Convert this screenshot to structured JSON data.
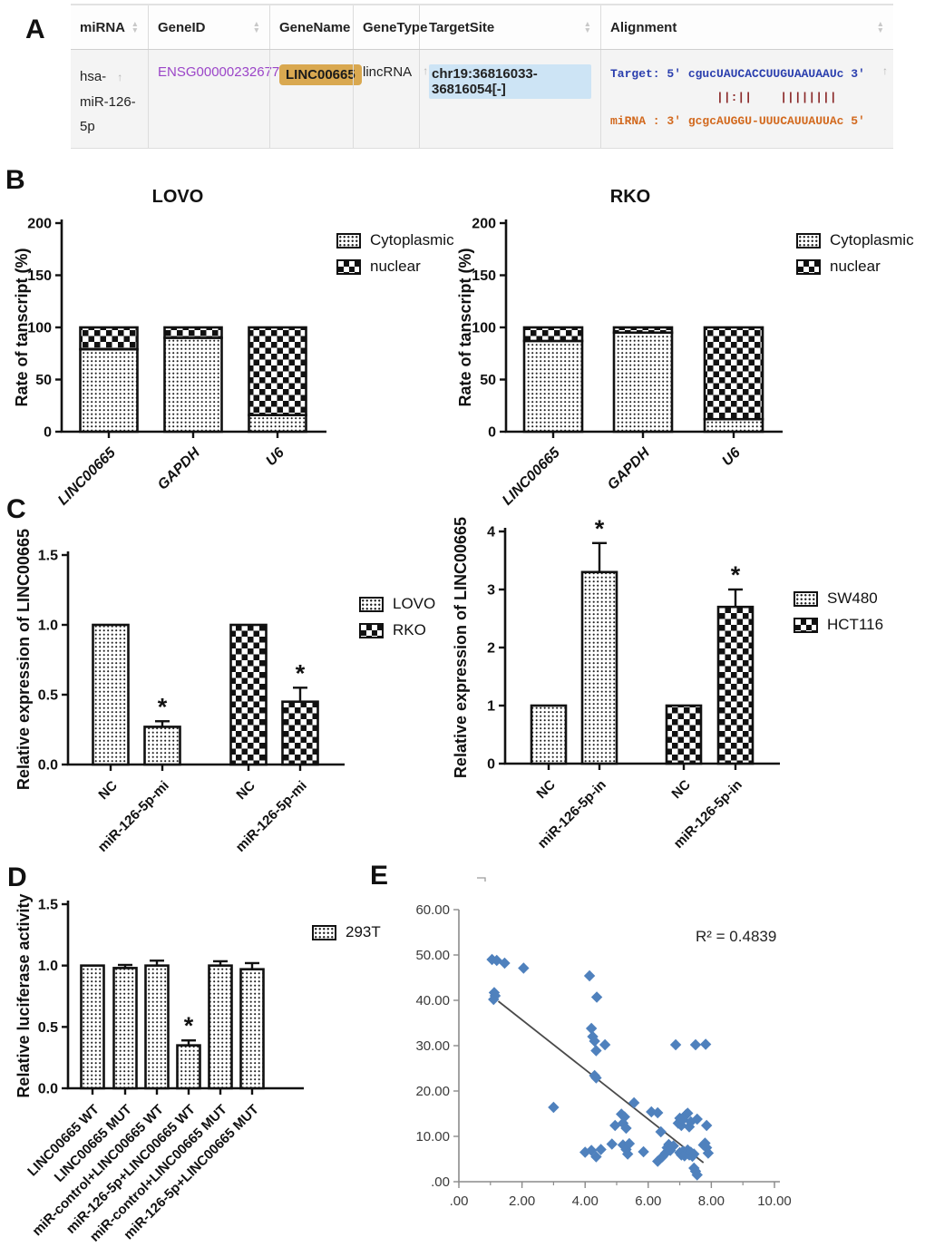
{
  "panels": {
    "a": "A",
    "b": "B",
    "c": "C",
    "d": "D",
    "e": "E"
  },
  "colors": {
    "gene_id_text": "#9b45c8",
    "gene_name_badge_bg": "#d9a850",
    "target_site_highlight": "#cde4f5",
    "alignment_target_text": "#2b3fae",
    "alignment_pairs_text": "#8b2a2a",
    "alignment_mirna_text": "#d2691e",
    "scatter_point": "#4f81bd"
  },
  "panel_a": {
    "headers": [
      {
        "label": "miRNA",
        "sort": true
      },
      {
        "label": "GeneID",
        "sort": true
      },
      {
        "label": "GeneName",
        "sort": false
      },
      {
        "label": "GeneType",
        "sort": false
      },
      {
        "label": "TargetSite",
        "sort": true
      },
      {
        "label": "Alignment",
        "sort": true
      }
    ],
    "row": {
      "mirna_line1": "hsa-",
      "mirna_line2": "miR-126-5p",
      "gene_id": "ENSG00000232677",
      "gene_name": "LINC00665",
      "gene_type": "lincRNA",
      "target_site": "chr19:36816033-36816054[-]",
      "alignment": {
        "target": "Target: 5' cgucUAUCACCUUGUAAUAAUc 3'",
        "pairing": "               ||:||    ||||||||",
        "mirna": "miRNA : 3' gcgcAUGGU-UUUCAUUAUUAc 5'"
      }
    }
  },
  "chart_data": [
    {
      "id": "lovo",
      "type": "stacked_bar",
      "title": "LOVO",
      "ylabel": "Rate of tanscript (%)",
      "ylim": [
        0,
        200
      ],
      "yticks": [
        0,
        50,
        100,
        150,
        200
      ],
      "ytick_labels": [
        "0",
        "50",
        "100",
        "150",
        "200"
      ],
      "categories": [
        "LINC00665",
        "GAPDH",
        "U6"
      ],
      "series": [
        {
          "name": "Cytoplasmic",
          "pattern": "dots",
          "values": [
            79,
            90,
            16
          ]
        },
        {
          "name": "nuclear",
          "pattern": "checker",
          "values": [
            21,
            10,
            84
          ]
        }
      ],
      "legend": [
        {
          "label": "Cytoplasmic",
          "pattern": "dots"
        },
        {
          "label": "nuclear",
          "pattern": "checker"
        }
      ],
      "legend_position": "right"
    },
    {
      "id": "rko",
      "type": "stacked_bar",
      "title": "RKO",
      "ylabel": "Rate of tanscript (%)",
      "ylim": [
        0,
        200
      ],
      "yticks": [
        0,
        50,
        100,
        150,
        200
      ],
      "ytick_labels": [
        "0",
        "50",
        "100",
        "150",
        "200"
      ],
      "categories": [
        "LINC00665",
        "GAPDH",
        "U6"
      ],
      "series": [
        {
          "name": "Cytoplasmic",
          "pattern": "dots",
          "values": [
            87,
            95,
            12
          ]
        },
        {
          "name": "nuclear",
          "pattern": "checker",
          "values": [
            13,
            5,
            88
          ]
        }
      ],
      "legend": [
        {
          "label": "Cytoplasmic",
          "pattern": "dots"
        },
        {
          "label": "nuclear",
          "pattern": "checker"
        }
      ],
      "legend_position": "right"
    },
    {
      "id": "c_left",
      "type": "bar",
      "ylabel": "Relative expression of LINC00665",
      "ylim": [
        0,
        1.5
      ],
      "yticks": [
        0,
        0.5,
        1.0,
        1.5
      ],
      "ytick_labels": [
        "0.0",
        "0.5",
        "1.0",
        "1.5"
      ],
      "bars": [
        {
          "label": "NC",
          "value": 1.0,
          "err": 0,
          "star": false,
          "pattern": "dots"
        },
        {
          "label": "miR-126-5p-mi",
          "value": 0.27,
          "err": 0.04,
          "star": true,
          "pattern": "dots"
        },
        {
          "label": "NC",
          "value": 1.0,
          "err": 0,
          "star": false,
          "pattern": "checker"
        },
        {
          "label": "miR-126-5p-mi",
          "value": 0.45,
          "err": 0.1,
          "star": true,
          "pattern": "checker"
        }
      ],
      "legend": [
        {
          "label": "LOVO",
          "pattern": "dots"
        },
        {
          "label": "RKO",
          "pattern": "checker"
        }
      ],
      "legend_position": "right"
    },
    {
      "id": "c_right",
      "type": "bar",
      "ylabel": "Relative expression of LINC00665",
      "ylim": [
        0,
        4
      ],
      "yticks": [
        0,
        1,
        2,
        3,
        4
      ],
      "ytick_labels": [
        "0",
        "1",
        "2",
        "3",
        "4"
      ],
      "bars": [
        {
          "label": "NC",
          "value": 1.0,
          "err": 0,
          "star": false,
          "pattern": "dots"
        },
        {
          "label": "miR-126-5p-in",
          "value": 3.3,
          "err": 0.5,
          "star": true,
          "pattern": "dots"
        },
        {
          "label": "NC",
          "value": 1.0,
          "err": 0,
          "star": false,
          "pattern": "checker"
        },
        {
          "label": "miR-126-5p-in",
          "value": 2.7,
          "err": 0.3,
          "star": true,
          "pattern": "checker"
        }
      ],
      "legend": [
        {
          "label": "SW480",
          "pattern": "dots"
        },
        {
          "label": "HCT116",
          "pattern": "checker"
        }
      ],
      "legend_position": "right"
    },
    {
      "id": "d",
      "type": "bar",
      "ylabel": "Relative luciferase activity",
      "ylim": [
        0,
        1.5
      ],
      "yticks": [
        0,
        0.5,
        1.0,
        1.5
      ],
      "ytick_labels": [
        "0.0",
        "0.5",
        "1.0",
        "1.5"
      ],
      "bars": [
        {
          "label": "LINC00665 WT",
          "value": 1.0,
          "err": 0,
          "star": false,
          "pattern": "dots"
        },
        {
          "label": "LINC00665 MUT",
          "value": 0.98,
          "err": 0.025,
          "star": false,
          "pattern": "dots"
        },
        {
          "label": "miR-control+LINC00665 WT",
          "value": 1.0,
          "err": 0.04,
          "star": false,
          "pattern": "dots"
        },
        {
          "label": "miR-126-5p+LINC00665 WT",
          "value": 0.35,
          "err": 0.04,
          "star": true,
          "pattern": "dots"
        },
        {
          "label": "miR-control+LINC00665 MUT",
          "value": 1.0,
          "err": 0.035,
          "star": false,
          "pattern": "dots"
        },
        {
          "label": "miR-126-5p+LINC00665 MUT",
          "value": 0.97,
          "err": 0.05,
          "star": false,
          "pattern": "dots"
        }
      ],
      "legend": [
        {
          "label": "293T",
          "pattern": "dots"
        }
      ],
      "legend_position": "right"
    },
    {
      "id": "e",
      "type": "scatter",
      "r2_label": "R² = 0.4839",
      "xlim": [
        0,
        10
      ],
      "ylim": [
        0,
        60
      ],
      "xticks": [
        0,
        2,
        4,
        6,
        8,
        10
      ],
      "xtick_labels": [
        ".00",
        "2.00",
        "4.00",
        "6.00",
        "8.00",
        "10.00"
      ],
      "yticks": [
        0,
        10,
        20,
        30,
        40,
        50,
        60
      ],
      "ytick_labels": [
        ".00",
        "10.00",
        "20.00",
        "30.00",
        "40.00",
        "50.00",
        "60.00"
      ],
      "grid": false,
      "trend": {
        "x1": 1.25,
        "y1": 39.8,
        "x2": 7.75,
        "y2": 4.2
      },
      "points": [
        [
          1.05,
          49.0
        ],
        [
          1.2,
          48.8
        ],
        [
          1.45,
          48.2
        ],
        [
          2.05,
          47.1
        ],
        [
          1.12,
          41.7
        ],
        [
          1.15,
          41.0
        ],
        [
          1.1,
          40.2
        ],
        [
          4.14,
          45.4
        ],
        [
          4.37,
          40.7
        ],
        [
          4.2,
          33.8
        ],
        [
          4.24,
          32.0
        ],
        [
          4.3,
          31.0
        ],
        [
          4.35,
          28.9
        ],
        [
          4.63,
          30.2
        ],
        [
          6.87,
          30.2
        ],
        [
          7.5,
          30.2
        ],
        [
          7.82,
          30.3
        ],
        [
          4.3,
          23.4
        ],
        [
          4.35,
          22.9
        ],
        [
          3.0,
          16.4
        ],
        [
          5.55,
          17.4
        ],
        [
          6.1,
          15.4
        ],
        [
          6.3,
          15.2
        ],
        [
          5.15,
          14.9
        ],
        [
          5.25,
          14.3
        ],
        [
          5.2,
          12.9
        ],
        [
          4.95,
          12.4
        ],
        [
          5.3,
          11.8
        ],
        [
          6.4,
          11.0
        ],
        [
          6.95,
          12.9
        ],
        [
          7.0,
          14.0
        ],
        [
          7.05,
          12.4
        ],
        [
          7.1,
          13.7
        ],
        [
          7.2,
          14.8
        ],
        [
          7.25,
          15.1
        ],
        [
          7.3,
          12.1
        ],
        [
          7.35,
          13.2
        ],
        [
          7.55,
          13.8
        ],
        [
          7.85,
          12.4
        ],
        [
          4.0,
          6.5
        ],
        [
          4.2,
          6.9
        ],
        [
          4.35,
          5.5
        ],
        [
          4.5,
          7.1
        ],
        [
          4.85,
          8.3
        ],
        [
          5.2,
          8.1
        ],
        [
          5.3,
          7.1
        ],
        [
          5.35,
          6.1
        ],
        [
          5.4,
          8.4
        ],
        [
          5.85,
          6.6
        ],
        [
          6.3,
          4.5
        ],
        [
          6.45,
          5.5
        ],
        [
          6.55,
          6.3
        ],
        [
          6.6,
          7.5
        ],
        [
          6.65,
          8.2
        ],
        [
          6.7,
          6.9
        ],
        [
          6.8,
          7.9
        ],
        [
          7.0,
          6.4
        ],
        [
          7.05,
          5.9
        ],
        [
          7.1,
          6.7
        ],
        [
          7.15,
          5.7
        ],
        [
          7.2,
          6.2
        ],
        [
          7.25,
          7.0
        ],
        [
          7.3,
          5.9
        ],
        [
          7.35,
          6.5
        ],
        [
          7.4,
          5.6
        ],
        [
          7.45,
          6.1
        ],
        [
          7.45,
          3.0
        ],
        [
          7.5,
          2.3
        ],
        [
          7.55,
          1.5
        ],
        [
          7.75,
          8.1
        ],
        [
          7.8,
          8.5
        ],
        [
          7.85,
          7.5
        ],
        [
          7.9,
          6.3
        ]
      ]
    }
  ]
}
